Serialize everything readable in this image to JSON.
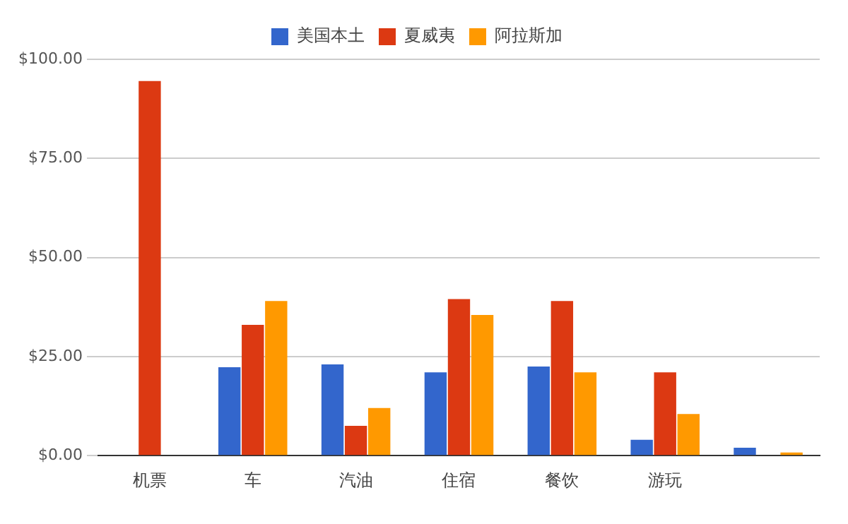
{
  "chart_data": {
    "type": "bar",
    "categories": [
      "机票",
      "车",
      "汽油",
      "住宿",
      "餐饮",
      "游玩",
      null
    ],
    "series": [
      {
        "name": "美国本土",
        "color": "#3366cc",
        "values": [
          null,
          22.3,
          23,
          21,
          22.5,
          4,
          2
        ]
      },
      {
        "name": "夏威夷",
        "color": "#dc3912",
        "values": [
          94.5,
          33,
          7.5,
          39.5,
          39,
          21,
          null
        ]
      },
      {
        "name": "阿拉斯加",
        "color": "#ff9900",
        "values": [
          null,
          39,
          12,
          35.5,
          21,
          10.5,
          0.8
        ]
      }
    ],
    "ylim": [
      0,
      100
    ],
    "yticks": [
      {
        "value": 0,
        "label": "$0.00"
      },
      {
        "value": 25,
        "label": "$25.00"
      },
      {
        "value": 50,
        "label": "$50.00"
      },
      {
        "value": 75,
        "label": "$75.00"
      },
      {
        "value": 100,
        "label": "$100.00"
      }
    ],
    "grid": "y",
    "legend": "top"
  }
}
